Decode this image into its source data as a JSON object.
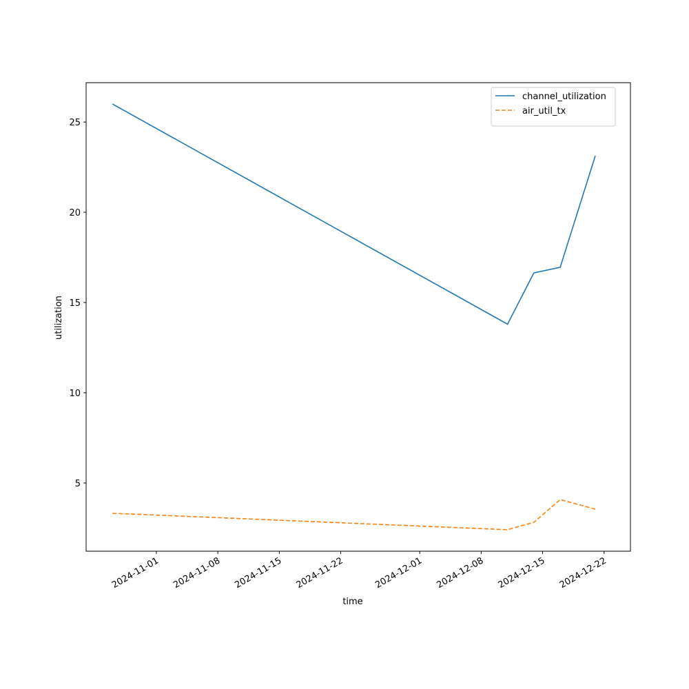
{
  "chart_data": {
    "type": "line",
    "x_label": "time",
    "y_label": "utilization",
    "x": [
      "2024-10-27",
      "2024-12-11",
      "2024-12-14",
      "2024-12-17",
      "2024-12-21"
    ],
    "series": [
      {
        "name": "channel_utilization",
        "color": "#1f77b4",
        "dash": "solid",
        "values": [
          26.0,
          13.8,
          16.64,
          16.95,
          23.13
        ]
      },
      {
        "name": "air_util_tx",
        "color": "#ff7f0e",
        "dash": "dashed",
        "values": [
          3.32,
          2.41,
          2.82,
          4.08,
          3.55
        ]
      }
    ],
    "xlim": [
      "2024-10-24",
      "2024-12-25"
    ],
    "xticks": [
      "2024-11-01",
      "2024-11-08",
      "2024-11-15",
      "2024-11-22",
      "2024-12-01",
      "2024-12-08",
      "2024-12-15",
      "2024-12-22"
    ],
    "ylim": [
      1.22,
      27.18
    ],
    "yticks": [
      5,
      10,
      15,
      20,
      25
    ],
    "grid": false,
    "legend": "upper right"
  }
}
